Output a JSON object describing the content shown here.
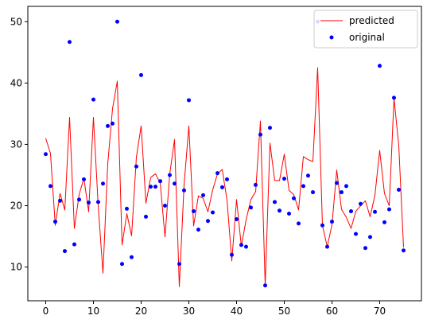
{
  "chart_data": {
    "type": "line",
    "title": "",
    "xlabel": "",
    "ylabel": "",
    "xlim": [
      -3.75,
      78.75
    ],
    "ylim": [
      4.5,
      52.5
    ],
    "grid": false,
    "legend": "top-right",
    "x_ticks": [
      0,
      10,
      20,
      30,
      40,
      50,
      60,
      70
    ],
    "y_ticks": [
      10,
      20,
      30,
      40,
      50
    ],
    "series": [
      {
        "name": "predicted",
        "kind": "line",
        "color": "#ff0000",
        "x": [
          0,
          1,
          2,
          3,
          4,
          5,
          6,
          7,
          8,
          9,
          10,
          11,
          12,
          13,
          14,
          15,
          16,
          17,
          18,
          19,
          20,
          21,
          22,
          23,
          24,
          25,
          26,
          27,
          28,
          29,
          30,
          31,
          32,
          33,
          34,
          35,
          36,
          37,
          38,
          39,
          40,
          41,
          42,
          43,
          44,
          45,
          46,
          47,
          48,
          49,
          50,
          51,
          52,
          53,
          54,
          55,
          56,
          57,
          58,
          59,
          60,
          61,
          62,
          63,
          64,
          65,
          66,
          67,
          68,
          69,
          70,
          71,
          72,
          73,
          74,
          75
        ],
        "y": [
          31.0,
          28.5,
          16.8,
          22.0,
          19.3,
          34.4,
          16.3,
          21.8,
          24.5,
          19.0,
          34.4,
          20.0,
          9.0,
          26.8,
          35.8,
          40.3,
          13.6,
          18.7,
          15.1,
          27.9,
          33.0,
          20.4,
          24.6,
          25.2,
          23.7,
          14.9,
          25.2,
          30.8,
          6.8,
          23.4,
          33.0,
          16.7,
          21.6,
          21.2,
          19.0,
          22.6,
          25.2,
          25.9,
          20.9,
          11.0,
          21.0,
          13.4,
          17.7,
          21.0,
          22.3,
          33.8,
          7.0,
          30.2,
          24.1,
          24.1,
          28.4,
          22.5,
          21.8,
          19.3,
          28.0,
          27.5,
          27.2,
          42.5,
          16.8,
          13.3,
          16.9,
          25.8,
          19.4,
          18.1,
          16.3,
          19.1,
          20.0,
          20.8,
          18.2,
          21.7,
          29.0,
          22.0,
          20.0,
          37.5,
          29.8,
          13.2
        ]
      },
      {
        "name": "original",
        "kind": "scatter",
        "color": "#0000ff",
        "x": [
          0,
          1,
          2,
          3,
          4,
          5,
          6,
          7,
          8,
          9,
          10,
          11,
          12,
          13,
          14,
          15,
          16,
          17,
          18,
          19,
          20,
          21,
          22,
          23,
          24,
          25,
          26,
          27,
          28,
          29,
          30,
          31,
          32,
          33,
          34,
          35,
          36,
          37,
          38,
          39,
          40,
          41,
          42,
          43,
          44,
          45,
          46,
          47,
          48,
          49,
          50,
          51,
          52,
          53,
          54,
          55,
          56,
          57,
          58,
          59,
          60,
          61,
          62,
          63,
          64,
          65,
          66,
          67,
          68,
          69,
          70,
          71,
          72,
          73,
          74,
          75
        ],
        "y": [
          28.4,
          23.2,
          17.4,
          20.8,
          12.6,
          46.7,
          13.7,
          21.0,
          24.3,
          20.5,
          37.3,
          20.6,
          23.6,
          33.0,
          33.4,
          50.0,
          10.5,
          19.5,
          11.6,
          26.4,
          41.3,
          18.2,
          23.1,
          23.1,
          24.0,
          20.0,
          25.0,
          23.6,
          10.5,
          22.5,
          37.2,
          19.1,
          16.1,
          21.7,
          17.5,
          18.9,
          25.3,
          23.0,
          24.3,
          12.0,
          17.8,
          13.6,
          13.3,
          19.7,
          23.4,
          31.6,
          7.0,
          32.7,
          20.6,
          19.2,
          24.4,
          18.7,
          21.2,
          17.1,
          23.2,
          24.9,
          22.2,
          50.0,
          16.8,
          13.3,
          17.4,
          23.7,
          22.2,
          23.2,
          19.1,
          15.4,
          20.3,
          13.1,
          14.9,
          19.0,
          42.8,
          17.3,
          19.4,
          37.6,
          22.6,
          12.7
        ]
      }
    ]
  }
}
